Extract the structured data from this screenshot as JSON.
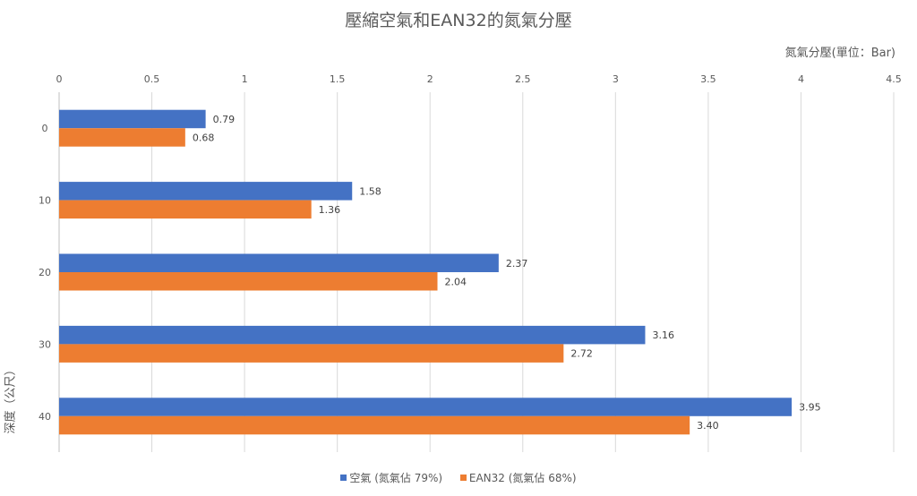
{
  "chart_data": {
    "type": "bar",
    "orientation": "horizontal",
    "title": "壓縮空氣和EAN32的氮氣分壓",
    "xlabel": "氮氣分壓(單位：Bar)",
    "ylabel": "深度（公尺）",
    "xlim": [
      0,
      4.5
    ],
    "xticks": [
      "0",
      "0.5",
      "1",
      "1.5",
      "2",
      "2.5",
      "3",
      "3.5",
      "4",
      "4.5"
    ],
    "x_axis_position": "top",
    "grid": true,
    "legend_position": "bottom",
    "categories": [
      "0",
      "10",
      "20",
      "30",
      "40"
    ],
    "series": [
      {
        "name": "空氣 (氮氣佔 79%)",
        "color": "#4472C4",
        "values": [
          0.79,
          1.58,
          2.37,
          3.16,
          3.95
        ],
        "labels": [
          "0.79",
          "1.58",
          "2.37",
          "3.16",
          "3.95"
        ]
      },
      {
        "name": "EAN32 (氮氣佔 68%)",
        "color": "#ED7D31",
        "values": [
          0.68,
          1.36,
          2.04,
          2.72,
          3.4
        ],
        "labels": [
          "0.68",
          "1.36",
          "2.04",
          "2.72",
          "3.40"
        ]
      }
    ]
  }
}
